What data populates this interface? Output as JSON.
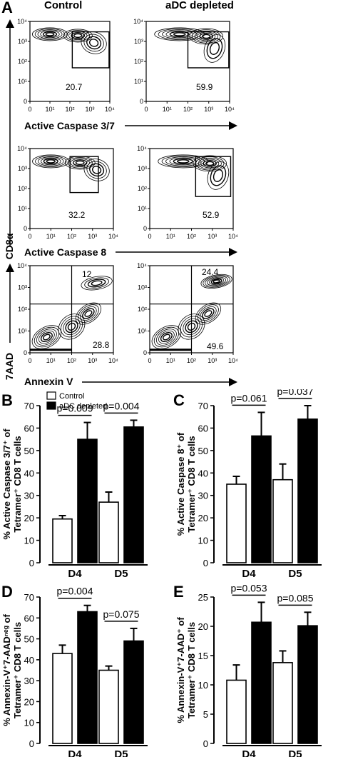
{
  "panel_letters": {
    "A": "A",
    "B": "B",
    "C": "C",
    "D": "D",
    "E": "E"
  },
  "flow": {
    "column_titles": [
      "Control",
      "aDC depleted"
    ],
    "y_label_cd8": "CD8α",
    "y_label_7aad": "7AAD",
    "rows": [
      {
        "xlabel": "Active Caspase 3/7",
        "control_value": "20.7",
        "depleted_value": "59.9"
      },
      {
        "xlabel": "Active Caspase 8",
        "control_value": "32.2",
        "depleted_value": "52.9"
      },
      {
        "xlabel": "Annexin V",
        "control_upper": "12",
        "control_lower": "28.8",
        "depleted_upper": "24.4",
        "depleted_lower": "49.6"
      }
    ],
    "x_ticks": [
      "0",
      "10¹",
      "10²",
      "10³",
      "10⁴"
    ],
    "y_ticks": [
      "0",
      "10¹",
      "10²",
      "10³",
      "10⁴"
    ]
  },
  "chart_data": [
    {
      "id": "B",
      "type": "bar",
      "categories": [
        "D4",
        "D5"
      ],
      "series": [
        {
          "name": "Control",
          "values": [
            19.5,
            27
          ],
          "errors": [
            1.5,
            4.5
          ],
          "color": "#ffffff"
        },
        {
          "name": "aDC depleted",
          "values": [
            55,
            60.5
          ],
          "errors": [
            7.5,
            3
          ],
          "color": "#000000"
        }
      ],
      "ylabel_line1": "% Active Caspase 3/7⁺ of",
      "ylabel_line2": "Tetramer⁺ CD8 T cells",
      "ylim": [
        0,
        70
      ],
      "yticks": [
        0,
        10,
        20,
        30,
        40,
        50,
        60,
        70
      ],
      "pvalues": [
        "p=0.009",
        "p=0.004"
      ],
      "legend": "top-left"
    },
    {
      "id": "C",
      "type": "bar",
      "categories": [
        "D4",
        "D5"
      ],
      "series": [
        {
          "name": "Control",
          "values": [
            35,
            37
          ],
          "errors": [
            3.5,
            7
          ],
          "color": "#ffffff"
        },
        {
          "name": "aDC depleted",
          "values": [
            56.5,
            64
          ],
          "errors": [
            10.5,
            6
          ],
          "color": "#000000"
        }
      ],
      "ylabel_line1": "% Active Caspase 8⁺ of",
      "ylabel_line2": "Tetramer⁺ CD8 T cells",
      "ylim": [
        0,
        70
      ],
      "yticks": [
        0,
        10,
        20,
        30,
        40,
        50,
        60,
        70
      ],
      "pvalues": [
        "p=0.061",
        "p=0.037"
      ]
    },
    {
      "id": "D",
      "type": "bar",
      "categories": [
        "D4",
        "D5"
      ],
      "series": [
        {
          "name": "Control",
          "values": [
            43,
            35
          ],
          "errors": [
            4,
            2
          ],
          "color": "#ffffff"
        },
        {
          "name": "aDC depleted",
          "values": [
            63,
            49
          ],
          "errors": [
            3,
            6
          ],
          "color": "#000000"
        }
      ],
      "ylabel_line1": "% Annexin-V⁺7-AADⁿᵉᵍ of",
      "ylabel_line2": "Tetramer⁺ CD8 T cells",
      "ylim": [
        0,
        70
      ],
      "yticks": [
        0,
        10,
        20,
        30,
        40,
        50,
        60,
        70
      ],
      "pvalues": [
        "p=0.004",
        "p=0.075"
      ]
    },
    {
      "id": "E",
      "type": "bar",
      "categories": [
        "D4",
        "D5"
      ],
      "series": [
        {
          "name": "Control",
          "values": [
            10.8,
            13.8
          ],
          "errors": [
            2.6,
            2
          ],
          "color": "#ffffff"
        },
        {
          "name": "aDC depleted",
          "values": [
            20.7,
            20.1
          ],
          "errors": [
            3.4,
            2.3
          ],
          "color": "#000000"
        }
      ],
      "ylabel_line1": "% Annexin-V⁺7-AAD⁺ of",
      "ylabel_line2": "Tetramer⁺ CD8 T cells",
      "ylim": [
        0,
        25
      ],
      "yticks": [
        0,
        5,
        10,
        15,
        20,
        25
      ],
      "pvalues": [
        "p=0.053",
        "p=0.085"
      ]
    }
  ]
}
